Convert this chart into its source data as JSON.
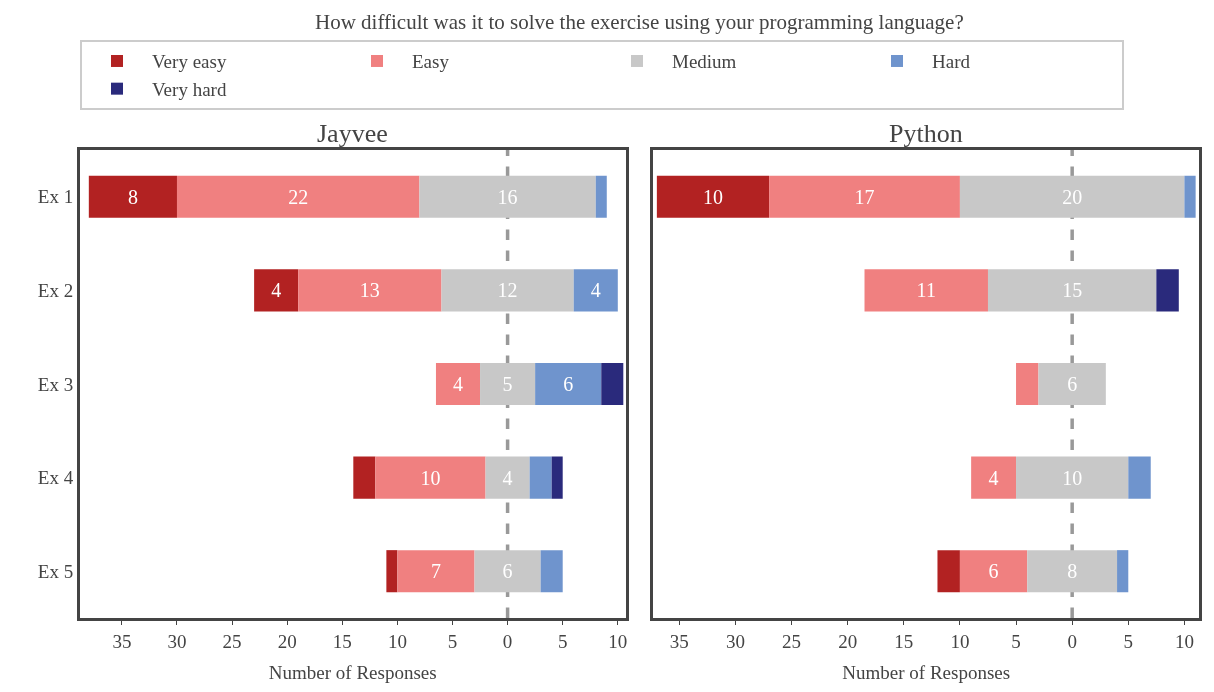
{
  "chart_data": [
    {
      "type": "bar",
      "orientation": "horizontal",
      "title": "Jayvee",
      "xlabel": "Number of Responses",
      "annotations": [
        "How difficult was it to solve the exercise using your programming language?"
      ],
      "categories": [
        "Ex 1",
        "Ex 2",
        "Ex 3",
        "Ex 4",
        "Ex 5"
      ],
      "series": [
        {
          "name": "Very easy",
          "color": "#b22222",
          "values": [
            8,
            4,
            null,
            2,
            1
          ],
          "base": [
            -38,
            -23,
            null,
            -14,
            -11
          ],
          "value_labels": [
            "8",
            "4",
            null,
            null,
            null
          ]
        },
        {
          "name": "Easy",
          "color": "#f08080",
          "values": [
            22,
            13,
            4,
            10,
            7
          ],
          "base": [
            -30,
            -19,
            -6.5,
            -12,
            -10
          ],
          "value_labels": [
            "22",
            "13",
            "4",
            "10",
            "7"
          ]
        },
        {
          "name": "Medium",
          "color": "#c8c8c8",
          "values": [
            16,
            12,
            5,
            4,
            6
          ],
          "base": [
            -8,
            -6,
            -2.5,
            -2,
            -3
          ],
          "value_labels": [
            "16",
            "12",
            "5",
            "4",
            "6"
          ]
        },
        {
          "name": "Hard",
          "color": "#6f94cd",
          "values": [
            1,
            4,
            6,
            2,
            2
          ],
          "base": [
            8,
            6,
            2.5,
            2,
            3
          ],
          "value_labels": [
            null,
            "4",
            "6",
            null,
            null
          ]
        },
        {
          "name": "Very hard",
          "color": "#2a2a7c",
          "values": [
            null,
            null,
            2,
            1,
            null
          ],
          "base": [
            null,
            null,
            8.5,
            4,
            null
          ],
          "value_labels": [
            null,
            null,
            null,
            null,
            null
          ]
        }
      ],
      "xlim": [
        -38.8,
        10.7
      ],
      "xticks": [
        {
          "value": -35,
          "label": "35"
        },
        {
          "value": -30,
          "label": "30"
        },
        {
          "value": -25,
          "label": "25"
        },
        {
          "value": -20,
          "label": "20"
        },
        {
          "value": -15,
          "label": "15"
        },
        {
          "value": -10,
          "label": "10"
        },
        {
          "value": -5,
          "label": "5"
        },
        0,
        5,
        10
      ],
      "ref_lines": [
        {
          "axis": "x",
          "value": 0,
          "label": null,
          "color": "#999999",
          "line_style": "dashed"
        }
      ],
      "legend": "top",
      "grid": false
    },
    {
      "type": "bar",
      "orientation": "horizontal",
      "title": "Python",
      "xlabel": "Number of Responses",
      "categories": [
        null,
        null,
        null,
        null,
        null
      ],
      "series": [
        {
          "name": "Very easy",
          "color": "#b22222",
          "values": [
            10,
            null,
            null,
            null,
            2
          ],
          "base": [
            -37,
            null,
            null,
            null,
            -12
          ],
          "value_labels": [
            "10",
            null,
            null,
            null,
            null
          ]
        },
        {
          "name": "Easy",
          "color": "#f08080",
          "values": [
            17,
            11,
            2,
            4,
            6
          ],
          "base": [
            -27,
            -18.5,
            -5,
            -9,
            -10
          ],
          "value_labels": [
            "17",
            "11",
            null,
            "4",
            "6"
          ]
        },
        {
          "name": "Medium",
          "color": "#c8c8c8",
          "values": [
            20,
            15,
            6,
            10,
            8
          ],
          "base": [
            -10,
            -7.5,
            -3,
            -5,
            -4
          ],
          "value_labels": [
            "20",
            "15",
            "6",
            "10",
            "8"
          ]
        },
        {
          "name": "Hard",
          "color": "#6f94cd",
          "values": [
            1,
            null,
            null,
            2,
            1
          ],
          "base": [
            10,
            null,
            null,
            5,
            4
          ],
          "value_labels": [
            null,
            null,
            null,
            null,
            null
          ]
        },
        {
          "name": "Very hard",
          "color": "#2a2a7c",
          "values": [
            null,
            2,
            null,
            null,
            null
          ],
          "base": [
            null,
            7.5,
            null,
            null,
            null
          ],
          "value_labels": [
            null,
            null,
            null,
            null,
            null
          ]
        }
      ],
      "xlim": [
        -37.3,
        11.3
      ],
      "xticks": [
        {
          "value": -35,
          "label": "35"
        },
        {
          "value": -30,
          "label": "30"
        },
        {
          "value": -25,
          "label": "25"
        },
        {
          "value": -20,
          "label": "20"
        },
        {
          "value": -15,
          "label": "15"
        },
        {
          "value": -10,
          "label": "10"
        },
        {
          "value": -5,
          "label": "5"
        },
        0,
        5,
        10
      ],
      "ref_lines": [
        {
          "axis": "x",
          "value": 0,
          "label": null,
          "color": "#999999",
          "line_style": "dashed"
        }
      ],
      "grid": false
    }
  ]
}
